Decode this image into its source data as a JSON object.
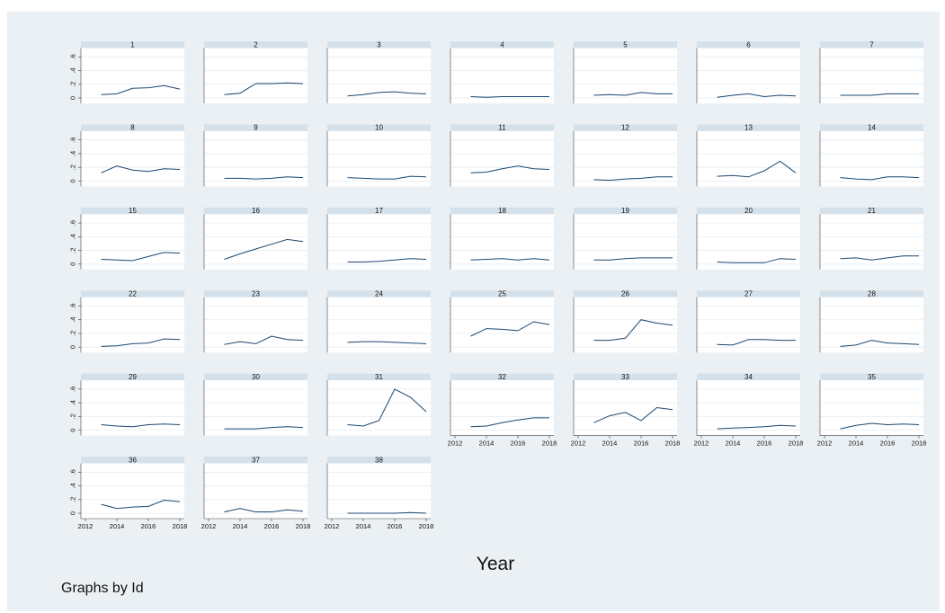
{
  "chart_data": {
    "type": "line",
    "layout": "small-multiples",
    "xlabel": "Year",
    "ylabel": "",
    "note": "Graphs by Id",
    "x": [
      2013,
      2014,
      2015,
      2016,
      2017,
      2018
    ],
    "xlim": [
      2012,
      2018
    ],
    "ylim": [
      0,
      0.65
    ],
    "xticks": [
      "2012",
      "2014",
      "2016",
      "2018"
    ],
    "yticks": [
      "0",
      ".2",
      ".4",
      ".6"
    ],
    "grid": true,
    "colors": {
      "line": "#1a476f",
      "strip": "#d5e1ea",
      "plot_bg": "#ffffff",
      "figure_bg": "#eaf0f3",
      "grid": "#e7ecef"
    },
    "series": [
      {
        "name": "1",
        "values": [
          0.05,
          0.06,
          0.14,
          0.15,
          0.18,
          0.13
        ]
      },
      {
        "name": "2",
        "values": [
          0.05,
          0.07,
          0.21,
          0.21,
          0.22,
          0.21
        ]
      },
      {
        "name": "3",
        "values": [
          0.03,
          0.05,
          0.08,
          0.09,
          0.07,
          0.06
        ]
      },
      {
        "name": "4",
        "values": [
          0.02,
          0.01,
          0.02,
          0.02,
          0.02,
          0.02
        ]
      },
      {
        "name": "5",
        "values": [
          0.04,
          0.05,
          0.04,
          0.08,
          0.06,
          0.06
        ]
      },
      {
        "name": "6",
        "values": [
          0.01,
          0.04,
          0.06,
          0.02,
          0.04,
          0.03
        ]
      },
      {
        "name": "7",
        "values": [
          0.04,
          0.04,
          0.04,
          0.06,
          0.06,
          0.06
        ]
      },
      {
        "name": "8",
        "values": [
          0.12,
          0.22,
          0.16,
          0.14,
          0.18,
          0.17
        ]
      },
      {
        "name": "9",
        "values": [
          0.04,
          0.04,
          0.03,
          0.04,
          0.06,
          0.05
        ]
      },
      {
        "name": "10",
        "values": [
          0.05,
          0.04,
          0.03,
          0.03,
          0.07,
          0.06
        ]
      },
      {
        "name": "11",
        "values": [
          0.12,
          0.13,
          0.18,
          0.22,
          0.18,
          0.17
        ]
      },
      {
        "name": "12",
        "values": [
          0.02,
          0.01,
          0.03,
          0.04,
          0.06,
          0.06
        ]
      },
      {
        "name": "13",
        "values": [
          0.07,
          0.08,
          0.06,
          0.15,
          0.29,
          0.12
        ]
      },
      {
        "name": "14",
        "values": [
          0.05,
          0.03,
          0.02,
          0.06,
          0.06,
          0.05
        ]
      },
      {
        "name": "15",
        "values": [
          0.07,
          0.06,
          0.05,
          0.11,
          0.17,
          0.16
        ]
      },
      {
        "name": "16",
        "values": [
          0.07,
          0.15,
          0.22,
          0.29,
          0.36,
          0.33
        ]
      },
      {
        "name": "17",
        "values": [
          0.03,
          0.03,
          0.04,
          0.06,
          0.08,
          0.07
        ]
      },
      {
        "name": "18",
        "values": [
          0.06,
          0.07,
          0.08,
          0.06,
          0.08,
          0.06
        ]
      },
      {
        "name": "19",
        "values": [
          0.06,
          0.06,
          0.08,
          0.09,
          0.09,
          0.09
        ]
      },
      {
        "name": "20",
        "values": [
          0.03,
          0.02,
          0.02,
          0.02,
          0.08,
          0.07
        ]
      },
      {
        "name": "21",
        "values": [
          0.08,
          0.09,
          0.06,
          0.09,
          0.12,
          0.12
        ]
      },
      {
        "name": "22",
        "values": [
          0.01,
          0.02,
          0.05,
          0.06,
          0.12,
          0.11
        ]
      },
      {
        "name": "23",
        "values": [
          0.04,
          0.08,
          0.05,
          0.16,
          0.11,
          0.1
        ]
      },
      {
        "name": "24",
        "values": [
          0.07,
          0.08,
          0.08,
          0.07,
          0.06,
          0.05
        ]
      },
      {
        "name": "25",
        "values": [
          0.16,
          0.27,
          0.26,
          0.24,
          0.37,
          0.33
        ]
      },
      {
        "name": "26",
        "values": [
          0.1,
          0.1,
          0.13,
          0.4,
          0.35,
          0.32
        ]
      },
      {
        "name": "27",
        "values": [
          0.04,
          0.03,
          0.11,
          0.11,
          0.1,
          0.1
        ]
      },
      {
        "name": "28",
        "values": [
          0.01,
          0.03,
          0.1,
          0.06,
          0.05,
          0.04
        ]
      },
      {
        "name": "29",
        "values": [
          0.08,
          0.06,
          0.05,
          0.08,
          0.09,
          0.08
        ]
      },
      {
        "name": "30",
        "values": [
          0.02,
          0.02,
          0.02,
          0.04,
          0.05,
          0.04
        ]
      },
      {
        "name": "31",
        "values": [
          0.08,
          0.06,
          0.14,
          0.6,
          0.48,
          0.27
        ]
      },
      {
        "name": "32",
        "values": [
          0.05,
          0.06,
          0.11,
          0.15,
          0.18,
          0.18
        ]
      },
      {
        "name": "33",
        "values": [
          0.11,
          0.21,
          0.26,
          0.14,
          0.33,
          0.3
        ]
      },
      {
        "name": "34",
        "values": [
          0.02,
          0.03,
          0.04,
          0.05,
          0.07,
          0.06
        ]
      },
      {
        "name": "35",
        "values": [
          0.02,
          0.07,
          0.1,
          0.08,
          0.09,
          0.08
        ]
      },
      {
        "name": "36",
        "values": [
          0.13,
          0.07,
          0.09,
          0.1,
          0.19,
          0.17
        ]
      },
      {
        "name": "37",
        "values": [
          0.02,
          0.07,
          0.02,
          0.02,
          0.05,
          0.03
        ]
      },
      {
        "name": "38",
        "values": [
          0.0,
          0.0,
          0.0,
          0.0,
          0.01,
          0.0
        ]
      }
    ]
  }
}
